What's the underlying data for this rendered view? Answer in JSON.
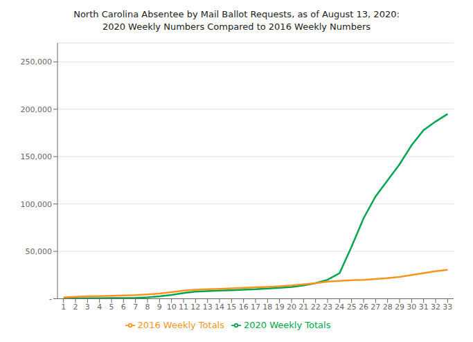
{
  "chart_data": {
    "type": "line",
    "title": "North Carolina Absentee by Mail Ballot Requests, as of August 13, 2020:",
    "subtitle": "2020 Weekly Numbers Compared to 2016 Weekly Numbers",
    "x": [
      1,
      2,
      3,
      4,
      5,
      6,
      7,
      8,
      9,
      10,
      11,
      12,
      13,
      14,
      15,
      16,
      17,
      18,
      19,
      20,
      21,
      22,
      23,
      24,
      25,
      26,
      27,
      28,
      29,
      30,
      31,
      32,
      33
    ],
    "series": [
      {
        "name": "2020 Weekly Totals",
        "color": "#00A550",
        "values": [
          300,
          400,
          500,
          600,
          700,
          800,
          1000,
          1500,
          2500,
          4000,
          6000,
          7500,
          8000,
          8500,
          9000,
          9500,
          10000,
          10800,
          11500,
          12500,
          14000,
          16500,
          20000,
          27000,
          55000,
          85000,
          108000,
          125000,
          142000,
          162000,
          178000,
          187000,
          195000
        ]
      },
      {
        "name": "2016 Weekly Totals",
        "color": "#F7941D",
        "values": [
          1500,
          2000,
          2500,
          2800,
          3100,
          3400,
          3800,
          4500,
          5500,
          7000,
          8500,
          9500,
          10000,
          10500,
          11000,
          11500,
          12000,
          12500,
          13200,
          14000,
          15200,
          16500,
          18000,
          18800,
          19500,
          20000,
          20800,
          21800,
          23000,
          25000,
          27000,
          29000,
          30500
        ]
      }
    ],
    "xlim": [
      0.5,
      33.5
    ],
    "xticks": [
      1,
      2,
      3,
      4,
      5,
      6,
      7,
      8,
      9,
      10,
      11,
      12,
      13,
      14,
      15,
      16,
      17,
      18,
      19,
      20,
      21,
      22,
      23,
      24,
      25,
      26,
      27,
      28,
      29,
      30,
      31,
      32,
      33
    ],
    "ylim": [
      0,
      270000
    ],
    "yticks": [
      {
        "value": 0,
        "label": "-"
      },
      {
        "value": 50000,
        "label": "50,000"
      },
      {
        "value": 100000,
        "label": "100,000"
      },
      {
        "value": 150000,
        "label": "150,000"
      },
      {
        "value": 200000,
        "label": "200,000"
      },
      {
        "value": 250000,
        "label": "250,000"
      }
    ],
    "grid": true,
    "legend": "bottom"
  }
}
